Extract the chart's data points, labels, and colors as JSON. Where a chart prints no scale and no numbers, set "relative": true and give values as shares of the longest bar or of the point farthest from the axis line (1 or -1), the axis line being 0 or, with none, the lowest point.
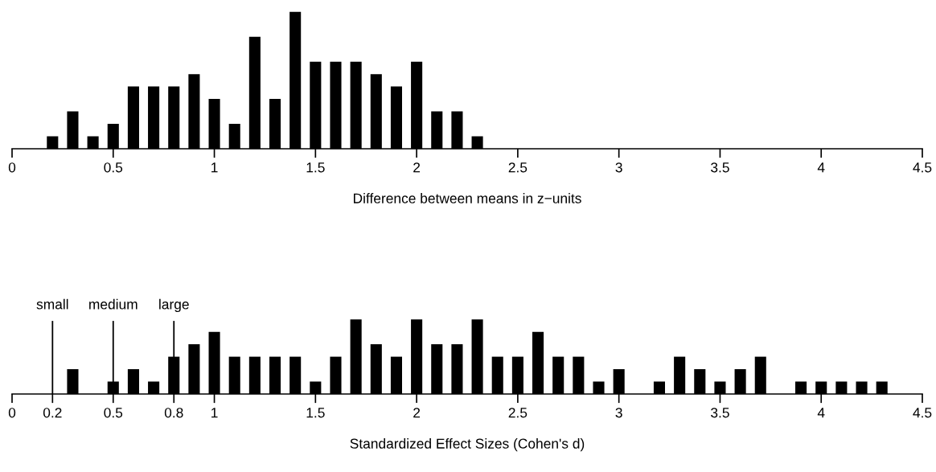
{
  "chart_data": [
    {
      "type": "bar",
      "relative": true,
      "xlabel": "Difference between means in z−units",
      "xlim": [
        0,
        4.5
      ],
      "xticks": [
        0,
        0.5,
        1,
        1.5,
        2,
        2.5,
        3,
        3.5,
        4,
        4.5
      ],
      "tick_labels": "x",
      "series": [
        {
          "color": "#000000",
          "x": [
            0.2,
            0.3,
            0.4,
            0.5,
            0.6,
            0.7,
            0.8,
            0.9,
            1,
            1.1,
            1.2,
            1.3,
            1.4,
            1.5,
            1.6,
            1.7,
            1.8,
            1.9,
            2,
            2.1,
            2.2,
            2.3
          ],
          "values": [
            0.091,
            0.273,
            0.091,
            0.182,
            0.455,
            0.455,
            0.455,
            0.545,
            0.364,
            0.182,
            0.818,
            0.364,
            1,
            0.636,
            0.636,
            0.636,
            0.545,
            0.455,
            0.636,
            0.273,
            0.273,
            0.091
          ]
        }
      ]
    },
    {
      "type": "bar",
      "relative": true,
      "xlabel": "Standardized Effect Sizes (Cohen's d)",
      "xlim": [
        0,
        4.5
      ],
      "xticks": [
        0,
        0.2,
        0.5,
        0.8,
        1,
        1.5,
        2,
        2.5,
        3,
        3.5,
        4,
        4.5
      ],
      "tick_labels": "x",
      "ref_lines": [
        {
          "axis": "x",
          "value": 0.2,
          "label": "small",
          "color": "#000000"
        },
        {
          "axis": "x",
          "value": 0.5,
          "label": "medium",
          "color": "#000000"
        },
        {
          "axis": "x",
          "value": 0.8,
          "label": "large",
          "color": "#000000"
        }
      ],
      "series": [
        {
          "color": "#000000",
          "x": [
            0.3,
            0.5,
            0.6,
            0.7,
            0.8,
            0.9,
            1,
            1.1,
            1.2,
            1.3,
            1.4,
            1.5,
            1.6,
            1.7,
            1.8,
            1.9,
            2,
            2.1,
            2.2,
            2.3,
            2.4,
            2.5,
            2.6,
            2.7,
            2.8,
            2.9,
            3,
            3.2,
            3.3,
            3.4,
            3.5,
            3.6,
            3.7,
            3.9,
            4,
            4.1,
            4.2,
            4.3
          ],
          "values": [
            0.333,
            0.167,
            0.333,
            0.167,
            0.5,
            0.667,
            0.833,
            0.5,
            0.5,
            0.5,
            0.5,
            0.167,
            0.5,
            1,
            0.667,
            0.5,
            1,
            0.667,
            0.667,
            1,
            0.5,
            0.5,
            0.833,
            0.5,
            0.5,
            0.167,
            0.333,
            0.167,
            0.5,
            0.333,
            0.167,
            0.333,
            0.5,
            0.167,
            0.167,
            0.167,
            0.167,
            0.167
          ]
        }
      ]
    }
  ]
}
